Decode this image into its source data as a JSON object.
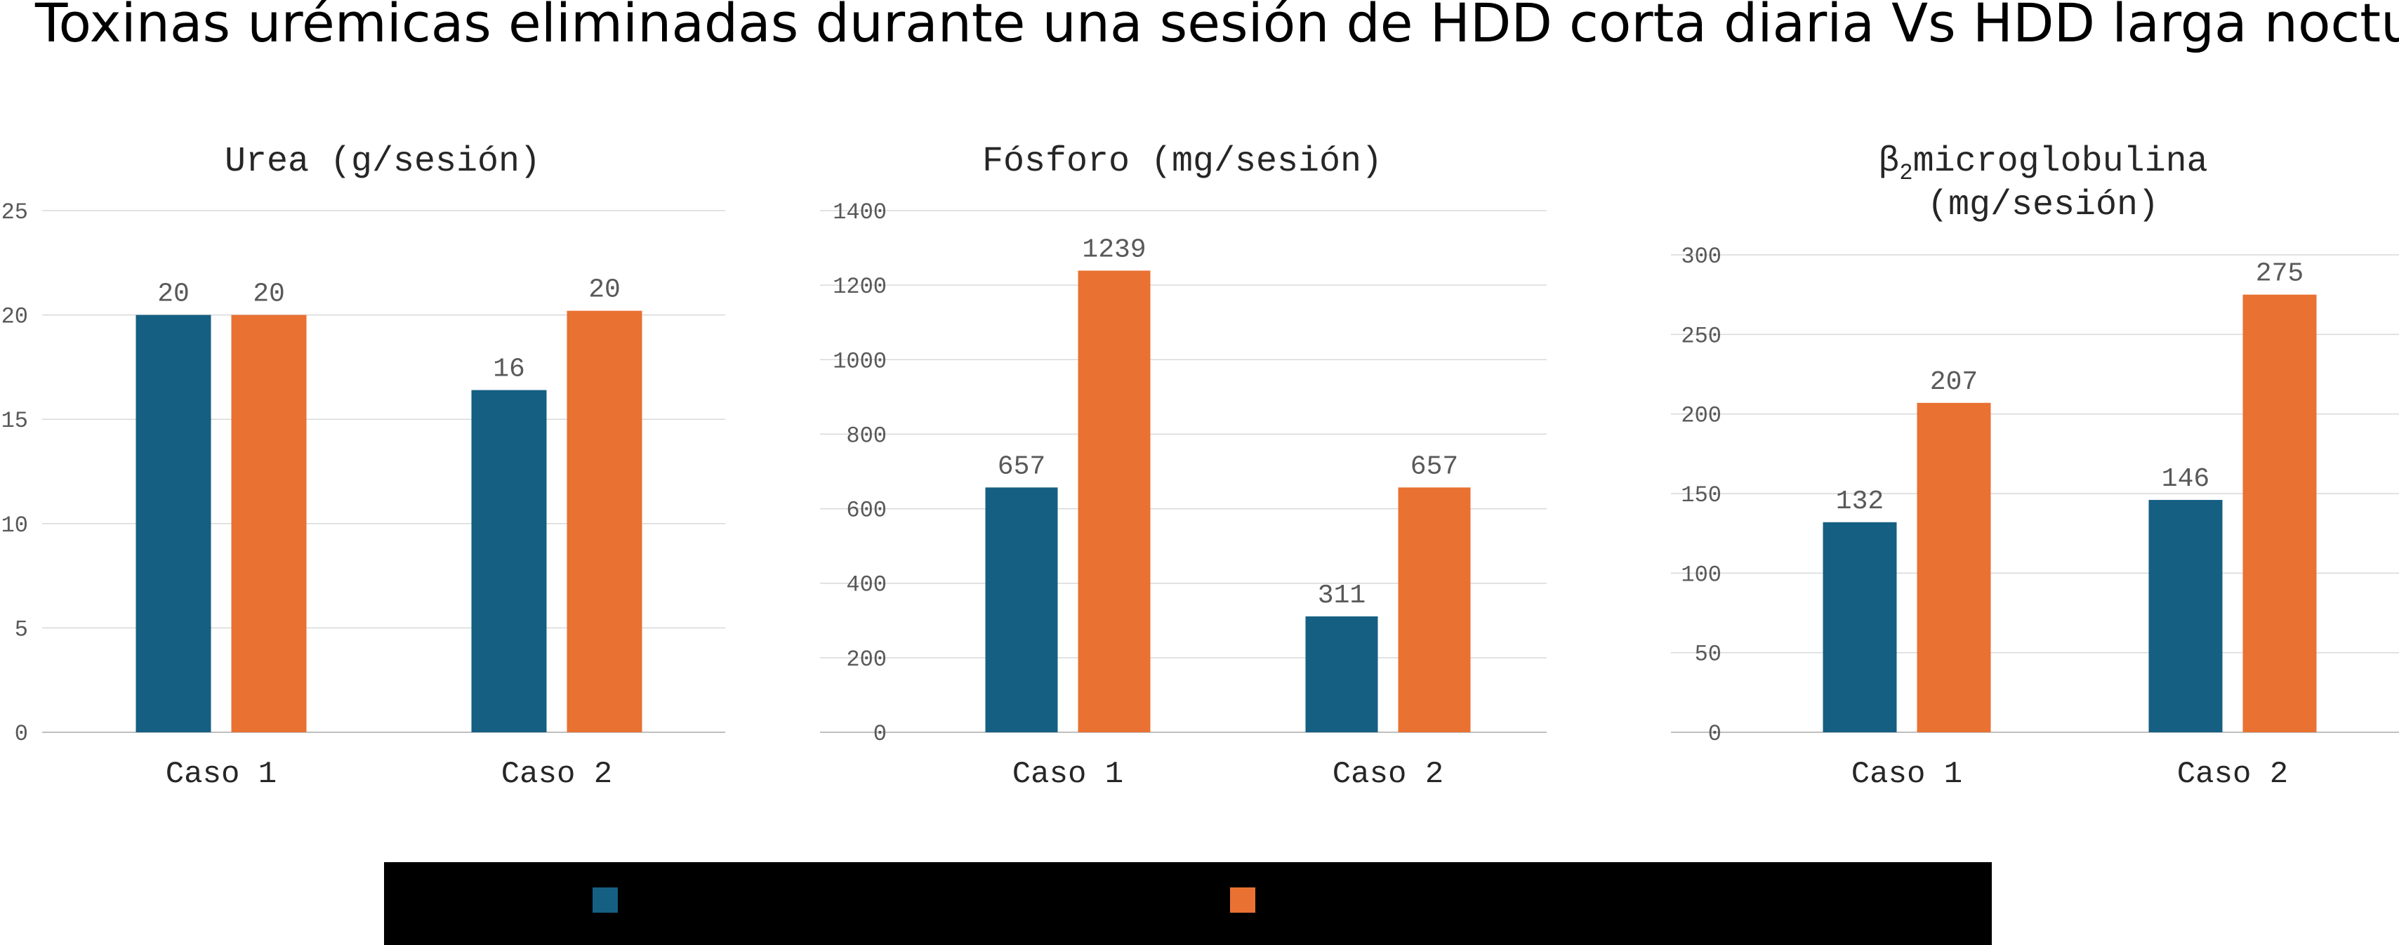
{
  "title": "Toxinas urémicas eliminadas durante una sesión de HDD corta diaria Vs HDD larga nocturna",
  "colors": {
    "series1": "#155f83",
    "series2": "#e97132",
    "grid": "#d9d9d9",
    "axis": "#bfbfbf"
  },
  "legend": {
    "series1_label": "",
    "series2_label": ""
  },
  "chart_data": [
    {
      "type": "bar",
      "title": "Urea (g/sesión)",
      "categories": [
        "Caso 1",
        "Caso 2"
      ],
      "series": [
        {
          "values": [
            20.0,
            16.4
          ],
          "labels": [
            "20",
            "16"
          ]
        },
        {
          "values": [
            20.0,
            20.2
          ],
          "labels": [
            "20",
            "20"
          ]
        }
      ],
      "ylim": [
        0,
        25
      ],
      "yticks": [
        "0",
        "5",
        "10",
        "15",
        "20",
        "25"
      ],
      "grid": true
    },
    {
      "type": "bar",
      "title": "Fósforo (mg/sesión)",
      "categories": [
        "Caso 1",
        "Caso 2"
      ],
      "series": [
        {
          "values": [
            657,
            311
          ],
          "labels": [
            "657",
            "311"
          ]
        },
        {
          "values": [
            1239,
            657
          ],
          "labels": [
            "1239",
            "657"
          ]
        }
      ],
      "ylim": [
        0,
        1400
      ],
      "yticks": [
        "0",
        "200",
        "400",
        "600",
        "800",
        "1000",
        "1200",
        "1400"
      ],
      "grid": true
    },
    {
      "type": "bar",
      "title_prefix": "β",
      "title_subscript": "2",
      "title_rest": "microglobulina",
      "title_line2": "(mg/sesión)",
      "categories": [
        "Caso 1",
        "Caso 2"
      ],
      "series": [
        {
          "values": [
            132,
            146
          ],
          "labels": [
            "132",
            "146"
          ]
        },
        {
          "values": [
            207,
            275
          ],
          "labels": [
            "207",
            "275"
          ]
        }
      ],
      "ylim": [
        0,
        300
      ],
      "yticks": [
        "0",
        "50",
        "100",
        "150",
        "200",
        "250",
        "300"
      ],
      "grid": true
    }
  ]
}
